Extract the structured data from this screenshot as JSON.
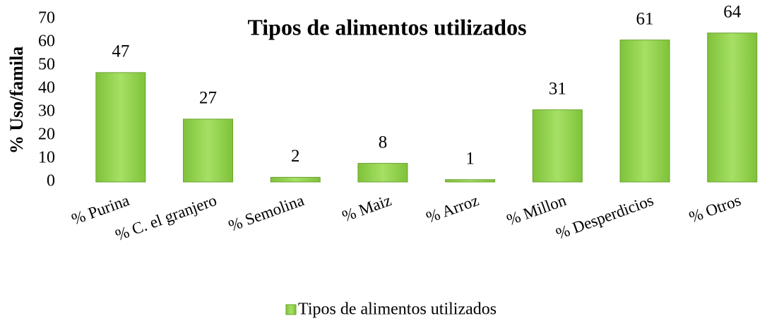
{
  "chart_data": {
    "type": "bar",
    "title": "Tipos de alimentos utilizados",
    "y_label": "% Uso/famila",
    "categories": [
      "% Purina",
      "% C. el granjero",
      "% Semolina",
      "% Maiz",
      "% Arroz",
      "% Millon",
      "% Desperdicios",
      "% Otros"
    ],
    "series": [
      {
        "name": "Tipos de alimentos utilizados",
        "color": "#92d050",
        "values": [
          47,
          27,
          2,
          8,
          1,
          31,
          61,
          64
        ]
      }
    ],
    "ylim": [
      0,
      70
    ],
    "yticks": [
      0,
      10,
      20,
      30,
      40,
      50,
      60,
      70
    ],
    "grid": false,
    "legend": "bottom"
  }
}
